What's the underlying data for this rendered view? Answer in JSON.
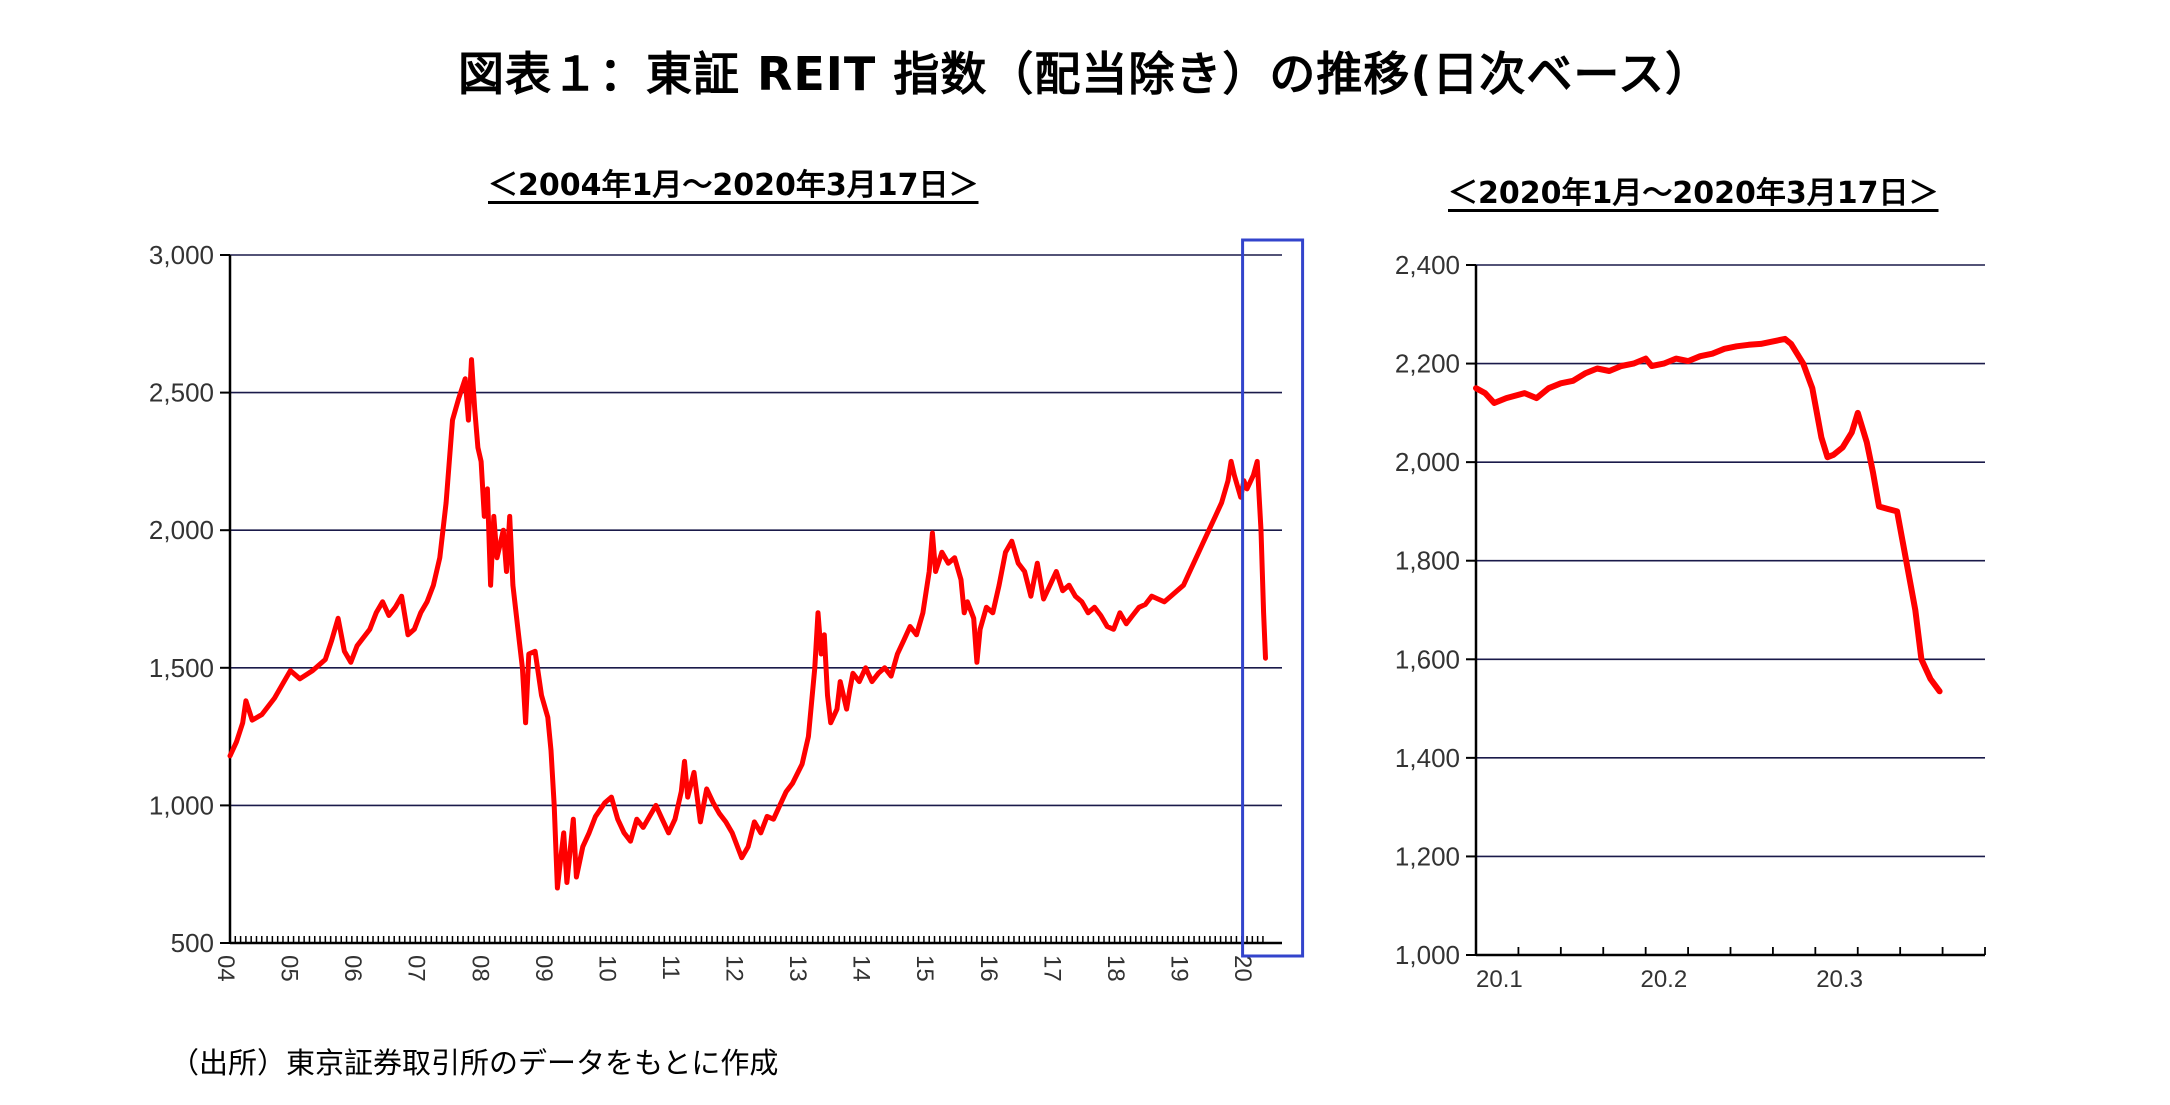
{
  "title": "図表１：東証 REIT 指数（配当除き）の推移(日次ベース）",
  "source": "（出所）東京証券取引所のデータをもとに作成",
  "colors": {
    "series": "#ff0000",
    "highlight_box": "#3344cc",
    "grid": "#1a1a4a"
  },
  "chart_data": [
    {
      "type": "line",
      "title": "＜2004年1月～2020年3月17日＞",
      "xlabel": "",
      "ylabel": "",
      "ylim": [
        500,
        3000
      ],
      "yticks": [
        "3,000",
        "2,500",
        "2,000",
        "1,500",
        "1,000",
        "500"
      ],
      "xticks": [
        "04",
        "05",
        "06",
        "07",
        "08",
        "09",
        "10",
        "11",
        "12",
        "13",
        "14",
        "15",
        "16",
        "17",
        "18",
        "19",
        "20"
      ],
      "xlim": [
        2004.0,
        2020.55
      ],
      "grid": true,
      "highlight": "2020",
      "series": [
        {
          "values": [
            [
              2004.0,
              1180
            ],
            [
              2004.1,
              1230
            ],
            [
              2004.2,
              1300
            ],
            [
              2004.25,
              1380
            ],
            [
              2004.35,
              1310
            ],
            [
              2004.5,
              1330
            ],
            [
              2004.7,
              1390
            ],
            [
              2004.85,
              1450
            ],
            [
              2004.95,
              1490
            ],
            [
              2005.1,
              1460
            ],
            [
              2005.3,
              1490
            ],
            [
              2005.5,
              1530
            ],
            [
              2005.6,
              1600
            ],
            [
              2005.7,
              1680
            ],
            [
              2005.8,
              1560
            ],
            [
              2005.9,
              1520
            ],
            [
              2006.0,
              1580
            ],
            [
              2006.2,
              1640
            ],
            [
              2006.3,
              1700
            ],
            [
              2006.4,
              1740
            ],
            [
              2006.5,
              1690
            ],
            [
              2006.6,
              1720
            ],
            [
              2006.7,
              1760
            ],
            [
              2006.8,
              1620
            ],
            [
              2006.9,
              1640
            ],
            [
              2007.0,
              1700
            ],
            [
              2007.1,
              1740
            ],
            [
              2007.2,
              1800
            ],
            [
              2007.3,
              1900
            ],
            [
              2007.4,
              2100
            ],
            [
              2007.5,
              2400
            ],
            [
              2007.6,
              2480
            ],
            [
              2007.7,
              2550
            ],
            [
              2007.75,
              2400
            ],
            [
              2007.8,
              2620
            ],
            [
              2007.85,
              2440
            ],
            [
              2007.9,
              2300
            ],
            [
              2007.95,
              2250
            ],
            [
              2008.0,
              2050
            ],
            [
              2008.05,
              2150
            ],
            [
              2008.1,
              1800
            ],
            [
              2008.15,
              2050
            ],
            [
              2008.2,
              1900
            ],
            [
              2008.25,
              1950
            ],
            [
              2008.3,
              2000
            ],
            [
              2008.35,
              1850
            ],
            [
              2008.4,
              2050
            ],
            [
              2008.45,
              1800
            ],
            [
              2008.55,
              1600
            ],
            [
              2008.6,
              1500
            ],
            [
              2008.65,
              1300
            ],
            [
              2008.7,
              1550
            ],
            [
              2008.8,
              1560
            ],
            [
              2008.9,
              1400
            ],
            [
              2009.0,
              1320
            ],
            [
              2009.05,
              1200
            ],
            [
              2009.1,
              1000
            ],
            [
              2009.15,
              700
            ],
            [
              2009.2,
              800
            ],
            [
              2009.25,
              900
            ],
            [
              2009.3,
              720
            ],
            [
              2009.4,
              950
            ],
            [
              2009.45,
              740
            ],
            [
              2009.55,
              850
            ],
            [
              2009.65,
              900
            ],
            [
              2009.75,
              960
            ],
            [
              2009.9,
              1010
            ],
            [
              2010.0,
              1030
            ],
            [
              2010.1,
              950
            ],
            [
              2010.2,
              900
            ],
            [
              2010.3,
              870
            ],
            [
              2010.4,
              950
            ],
            [
              2010.5,
              920
            ],
            [
              2010.6,
              960
            ],
            [
              2010.7,
              1000
            ],
            [
              2010.8,
              950
            ],
            [
              2010.9,
              900
            ],
            [
              2011.0,
              950
            ],
            [
              2011.1,
              1050
            ],
            [
              2011.15,
              1160
            ],
            [
              2011.2,
              1030
            ],
            [
              2011.3,
              1120
            ],
            [
              2011.4,
              940
            ],
            [
              2011.5,
              1060
            ],
            [
              2011.6,
              1010
            ],
            [
              2011.7,
              970
            ],
            [
              2011.8,
              940
            ],
            [
              2011.9,
              900
            ],
            [
              2012.0,
              840
            ],
            [
              2012.05,
              810
            ],
            [
              2012.15,
              850
            ],
            [
              2012.25,
              940
            ],
            [
              2012.35,
              900
            ],
            [
              2012.45,
              960
            ],
            [
              2012.55,
              950
            ],
            [
              2012.65,
              1000
            ],
            [
              2012.75,
              1050
            ],
            [
              2012.85,
              1080
            ],
            [
              2013.0,
              1150
            ],
            [
              2013.1,
              1250
            ],
            [
              2013.2,
              1500
            ],
            [
              2013.25,
              1700
            ],
            [
              2013.3,
              1550
            ],
            [
              2013.35,
              1620
            ],
            [
              2013.4,
              1400
            ],
            [
              2013.45,
              1300
            ],
            [
              2013.55,
              1350
            ],
            [
              2013.6,
              1450
            ],
            [
              2013.7,
              1350
            ],
            [
              2013.75,
              1420
            ],
            [
              2013.8,
              1480
            ],
            [
              2013.9,
              1450
            ],
            [
              2014.0,
              1500
            ],
            [
              2014.1,
              1450
            ],
            [
              2014.2,
              1480
            ],
            [
              2014.3,
              1500
            ],
            [
              2014.4,
              1470
            ],
            [
              2014.5,
              1550
            ],
            [
              2014.6,
              1600
            ],
            [
              2014.7,
              1650
            ],
            [
              2014.8,
              1620
            ],
            [
              2014.9,
              1700
            ],
            [
              2015.0,
              1850
            ],
            [
              2015.05,
              1990
            ],
            [
              2015.1,
              1850
            ],
            [
              2015.2,
              1920
            ],
            [
              2015.3,
              1880
            ],
            [
              2015.4,
              1900
            ],
            [
              2015.5,
              1820
            ],
            [
              2015.55,
              1700
            ],
            [
              2015.6,
              1740
            ],
            [
              2015.7,
              1680
            ],
            [
              2015.75,
              1520
            ],
            [
              2015.8,
              1640
            ],
            [
              2015.9,
              1720
            ],
            [
              2016.0,
              1700
            ],
            [
              2016.1,
              1800
            ],
            [
              2016.2,
              1920
            ],
            [
              2016.3,
              1960
            ],
            [
              2016.4,
              1880
            ],
            [
              2016.5,
              1850
            ],
            [
              2016.6,
              1760
            ],
            [
              2016.7,
              1880
            ],
            [
              2016.8,
              1750
            ],
            [
              2016.9,
              1800
            ],
            [
              2017.0,
              1850
            ],
            [
              2017.1,
              1780
            ],
            [
              2017.2,
              1800
            ],
            [
              2017.3,
              1760
            ],
            [
              2017.4,
              1740
            ],
            [
              2017.5,
              1700
            ],
            [
              2017.6,
              1720
            ],
            [
              2017.7,
              1690
            ],
            [
              2017.8,
              1650
            ],
            [
              2017.9,
              1640
            ],
            [
              2018.0,
              1700
            ],
            [
              2018.1,
              1660
            ],
            [
              2018.2,
              1690
            ],
            [
              2018.3,
              1720
            ],
            [
              2018.4,
              1730
            ],
            [
              2018.5,
              1760
            ],
            [
              2018.6,
              1750
            ],
            [
              2018.7,
              1740
            ],
            [
              2018.8,
              1760
            ],
            [
              2018.9,
              1780
            ],
            [
              2019.0,
              1800
            ],
            [
              2019.1,
              1850
            ],
            [
              2019.2,
              1900
            ],
            [
              2019.3,
              1950
            ],
            [
              2019.4,
              2000
            ],
            [
              2019.5,
              2050
            ],
            [
              2019.6,
              2100
            ],
            [
              2019.7,
              2180
            ],
            [
              2019.75,
              2250
            ],
            [
              2019.8,
              2200
            ],
            [
              2019.85,
              2160
            ],
            [
              2019.9,
              2120
            ],
            [
              2019.95,
              2180
            ],
            [
              2020.0,
              2150
            ],
            [
              2020.1,
              2200
            ],
            [
              2020.16,
              2250
            ],
            [
              2020.22,
              2000
            ],
            [
              2020.26,
              1700
            ],
            [
              2020.29,
              1535
            ]
          ]
        }
      ]
    },
    {
      "type": "line",
      "title": "＜2020年1月～2020年3月17日＞",
      "xlabel": "",
      "ylabel": "",
      "ylim": [
        1000,
        2400
      ],
      "yticks": [
        "2,400",
        "2,200",
        "2,000",
        "1,800",
        "1,600",
        "1,400",
        "1,200",
        "1,000"
      ],
      "xticks": [
        "20.1",
        "20.2",
        "20.3"
      ],
      "grid": true,
      "series": [
        {
          "values": [
            [
              0,
              2150
            ],
            [
              1.5,
              2140
            ],
            [
              3,
              2120
            ],
            [
              5,
              2130
            ],
            [
              8,
              2140
            ],
            [
              10,
              2130
            ],
            [
              12,
              2150
            ],
            [
              14,
              2160
            ],
            [
              16,
              2165
            ],
            [
              18,
              2180
            ],
            [
              20,
              2190
            ],
            [
              22,
              2185
            ],
            [
              24,
              2195
            ],
            [
              26,
              2200
            ],
            [
              28,
              2210
            ],
            [
              29,
              2195
            ],
            [
              31,
              2200
            ],
            [
              33,
              2210
            ],
            [
              35,
              2205
            ],
            [
              37,
              2215
            ],
            [
              39,
              2220
            ],
            [
              41,
              2230
            ],
            [
              43,
              2235
            ],
            [
              45,
              2238
            ],
            [
              47,
              2240
            ],
            [
              49,
              2245
            ],
            [
              51,
              2250
            ],
            [
              52,
              2240
            ],
            [
              54,
              2200
            ],
            [
              55.5,
              2150
            ],
            [
              57,
              2050
            ],
            [
              58,
              2010
            ],
            [
              59,
              2015
            ],
            [
              60.5,
              2030
            ],
            [
              62,
              2060
            ],
            [
              63,
              2100
            ],
            [
              64.5,
              2040
            ],
            [
              65.5,
              1980
            ],
            [
              66.5,
              1910
            ],
            [
              68,
              1905
            ],
            [
              69.5,
              1900
            ],
            [
              71,
              1800
            ],
            [
              72.5,
              1700
            ],
            [
              73.5,
              1600
            ],
            [
              75,
              1560
            ],
            [
              76.5,
              1535
            ]
          ]
        }
      ]
    }
  ]
}
